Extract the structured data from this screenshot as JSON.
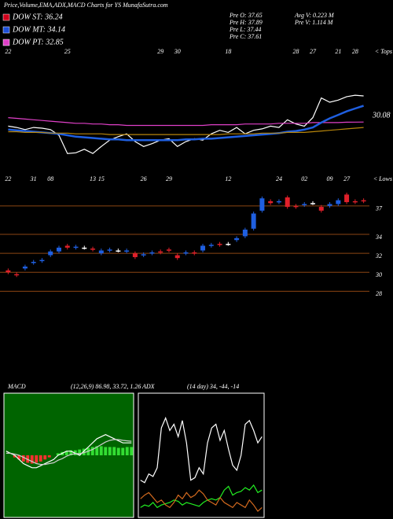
{
  "header": {
    "title": "Price,Volume,EMA,ADX,MACD Charts for YS MunafaSutra.com",
    "dow": [
      "DOW ST: 36.24",
      "DOW MT: 34.14",
      "DOW PT: 32.85"
    ],
    "dow_colors": [
      "#d0001a",
      "#1d4fd8",
      "#e040c8"
    ],
    "stats_left": [
      "Pre  O: 37.65",
      "Pre  H: 37.89",
      "Pre  L: 37.44",
      "Pre  C: 37.61"
    ],
    "stats_right": [
      "Avg V: 0.223 M",
      "Pre  V: 1.114  M"
    ]
  },
  "chart_data": [
    {
      "type": "line",
      "corner_label": "< Tops",
      "categories": [
        "22",
        null,
        null,
        null,
        null,
        null,
        null,
        "25",
        null,
        null,
        null,
        null,
        null,
        null,
        null,
        null,
        null,
        null,
        "29",
        null,
        "30",
        null,
        null,
        null,
        null,
        null,
        "18",
        null,
        null,
        null,
        null,
        null,
        null,
        null,
        "28",
        null,
        "27",
        null,
        null,
        "21",
        null,
        "28",
        null
      ],
      "ylim": [
        24.5,
        38.5
      ],
      "series": [
        {
          "color": "#ffffff",
          "values": [
            29.5,
            29.3,
            29.0,
            29.3,
            29.2,
            29.0,
            28.2,
            25.6,
            25.7,
            26.2,
            25.6,
            26.6,
            27.5,
            28.0,
            28.4,
            27.3,
            26.6,
            27.0,
            27.5,
            27.7,
            26.6,
            27.3,
            27.7,
            27.5,
            28.4,
            28.9,
            28.6,
            29.3,
            28.4,
            28.9,
            29.1,
            29.5,
            29.3,
            30.4,
            29.8,
            29.5,
            30.7,
            33.5,
            32.9,
            33.2,
            33.7,
            33.9,
            33.8
          ]
        },
        {
          "color": "#e040c8",
          "values": [
            30.7,
            30.6,
            30.5,
            30.4,
            30.3,
            30.2,
            30.1,
            30.0,
            29.9,
            29.9,
            29.8,
            29.8,
            29.7,
            29.7,
            29.6,
            29.6,
            29.6,
            29.6,
            29.6,
            29.6,
            29.6,
            29.6,
            29.6,
            29.6,
            29.7,
            29.7,
            29.7,
            29.7,
            29.8,
            29.8,
            29.8,
            29.8,
            29.9,
            29.9,
            29.9,
            29.9,
            30.0,
            30.0,
            30.0,
            30.0,
            30.05,
            30.07,
            30.08
          ]
        },
        {
          "color": "#1f5fe0",
          "values": [
            29.0,
            28.9,
            28.8,
            28.7,
            28.6,
            28.5,
            28.4,
            28.2,
            28.0,
            27.9,
            27.8,
            27.7,
            27.6,
            27.6,
            27.5,
            27.5,
            27.5,
            27.5,
            27.5,
            27.5,
            27.5,
            27.6,
            27.6,
            27.7,
            27.7,
            27.8,
            27.9,
            28.0,
            28.1,
            28.2,
            28.3,
            28.4,
            28.5,
            28.7,
            28.8,
            29.0,
            29.3,
            30.0,
            30.6,
            31.1,
            31.6,
            32.0,
            32.4
          ]
        },
        {
          "color": "#b8860b",
          "values": [
            28.7,
            28.7,
            28.6,
            28.6,
            28.6,
            28.5,
            28.5,
            28.5,
            28.4,
            28.4,
            28.4,
            28.4,
            28.3,
            28.3,
            28.3,
            28.3,
            28.3,
            28.3,
            28.3,
            28.3,
            28.3,
            28.3,
            28.3,
            28.3,
            28.3,
            28.3,
            28.4,
            28.4,
            28.4,
            28.4,
            28.5,
            28.5,
            28.5,
            28.6,
            28.6,
            28.6,
            28.7,
            28.8,
            28.9,
            29.0,
            29.1,
            29.2,
            29.3
          ]
        }
      ]
    },
    {
      "type": "candlestick",
      "corner_label": "< Lows",
      "categories": [
        "22",
        null,
        null,
        "31",
        null,
        "08",
        null,
        null,
        null,
        null,
        "13",
        "15",
        null,
        null,
        null,
        null,
        "26",
        null,
        null,
        "29",
        null,
        null,
        null,
        null,
        null,
        null,
        "12",
        null,
        null,
        null,
        null,
        null,
        "24",
        null,
        null,
        "02",
        null,
        null,
        "09",
        null,
        "27",
        null,
        null
      ],
      "open": [
        30.2,
        29.8,
        30.4,
        31.0,
        31.2,
        31.8,
        32.2,
        32.8,
        32.6,
        32.6,
        32.5,
        32.0,
        32.3,
        32.3,
        32.2,
        32.0,
        31.8,
        32.0,
        32.2,
        32.4,
        31.8,
        32.0,
        32.1,
        32.3,
        32.8,
        33.0,
        33.0,
        33.4,
        33.8,
        34.6,
        36.5,
        37.5,
        37.4,
        37.9,
        37.0,
        37.1,
        37.3,
        36.9,
        37.0,
        37.2,
        38.2,
        37.5,
        37.6
      ],
      "high": [
        30.4,
        30.0,
        30.8,
        31.3,
        31.5,
        32.4,
        32.8,
        33.0,
        32.9,
        32.8,
        32.7,
        32.5,
        32.6,
        32.5,
        32.5,
        32.2,
        32.1,
        32.3,
        32.4,
        32.6,
        32.0,
        32.3,
        32.3,
        33.0,
        33.1,
        33.2,
        33.2,
        33.8,
        34.7,
        36.4,
        38.0,
        37.7,
        37.7,
        38.1,
        37.2,
        37.4,
        37.5,
        37.1,
        37.4,
        37.8,
        38.4,
        37.7,
        37.8
      ],
      "low": [
        29.8,
        29.5,
        30.2,
        30.8,
        31.0,
        31.6,
        32.0,
        32.4,
        32.4,
        32.4,
        32.2,
        31.8,
        32.1,
        32.1,
        32.0,
        31.4,
        31.6,
        31.8,
        31.9,
        32.1,
        31.3,
        31.8,
        31.8,
        32.1,
        32.6,
        32.7,
        32.8,
        33.2,
        33.6,
        34.4,
        36.3,
        37.1,
        37.2,
        36.7,
        36.7,
        36.9,
        37.1,
        36.3,
        36.8,
        37.0,
        37.2,
        37.2,
        37.3
      ],
      "close": [
        30.0,
        29.7,
        30.6,
        31.1,
        31.3,
        32.2,
        32.6,
        32.6,
        32.7,
        32.6,
        32.4,
        32.3,
        32.4,
        32.3,
        32.3,
        31.6,
        31.9,
        32.1,
        32.1,
        32.3,
        31.5,
        32.1,
        32.0,
        32.8,
        32.9,
        32.9,
        33.0,
        33.6,
        34.5,
        36.2,
        37.8,
        37.3,
        37.5,
        36.9,
        36.9,
        37.2,
        37.3,
        36.5,
        37.2,
        37.6,
        37.4,
        37.4,
        37.5
      ],
      "up_color": "#1f5fe0",
      "down_color": "#e0202a",
      "flat_color": "#ffffff",
      "grid_color": "#8b4513",
      "ylim": [
        27.2,
        38.4
      ],
      "yticks": [
        28,
        30,
        32,
        34,
        37
      ],
      "grid": true
    },
    {
      "type": "macd",
      "title": "MACD",
      "subtitle": "(12,26,9) 86.98, 33.72, 1.26",
      "background": "#006400",
      "ylim": [
        -1.5,
        1.5
      ],
      "histogram": [
        0,
        0,
        -0.05,
        -0.1,
        -0.15,
        -0.18,
        -0.2,
        -0.18,
        -0.15,
        -0.1,
        -0.05,
        0,
        0.05,
        0.08,
        0.1,
        0.12,
        0.12,
        0.14,
        0.16,
        0.18,
        0.2,
        0.22,
        0.22,
        0.2,
        0.2,
        0.2,
        0.18,
        0.18,
        0.2,
        0.2
      ],
      "up_color": "#33dd33",
      "down_color": "#ff3030",
      "series": [
        {
          "color": "#ffffff",
          "values": [
            0.1,
            0.05,
            0,
            -0.1,
            -0.2,
            -0.25,
            -0.3,
            -0.3,
            -0.25,
            -0.2,
            -0.15,
            -0.1,
            0,
            0.05,
            0.1,
            0.1,
            0.05,
            0,
            0.1,
            0.2,
            0.3,
            0.4,
            0.45,
            0.5,
            0.45,
            0.4,
            0.35,
            0.3,
            0.3,
            0.3
          ]
        },
        {
          "color": "#cccccc",
          "values": [
            0.05,
            0.05,
            0.03,
            0,
            -0.05,
            -0.1,
            -0.15,
            -0.2,
            -0.22,
            -0.22,
            -0.2,
            -0.18,
            -0.12,
            -0.08,
            -0.02,
            0.02,
            0.04,
            0.04,
            0.06,
            0.1,
            0.14,
            0.2,
            0.26,
            0.32,
            0.36,
            0.38,
            0.38,
            0.36,
            0.35,
            0.34
          ]
        }
      ]
    },
    {
      "type": "line",
      "title": "ADX",
      "subtitle": "(14 day) 34, -44, -14",
      "background": "#000000",
      "ylim": [
        0,
        100
      ],
      "series": [
        {
          "color": "#ffffff",
          "values": [
            30,
            28,
            35,
            33,
            40,
            72,
            80,
            70,
            75,
            65,
            78,
            60,
            30,
            32,
            40,
            35,
            60,
            72,
            75,
            62,
            70,
            55,
            42,
            38,
            50,
            75,
            78,
            70,
            60,
            65
          ]
        },
        {
          "color": "#22ee22",
          "values": [
            8,
            10,
            9,
            12,
            8,
            10,
            11,
            12,
            14,
            13,
            10,
            12,
            11,
            10,
            9,
            12,
            14,
            15,
            14,
            16,
            22,
            25,
            18,
            20,
            21,
            24,
            22,
            26,
            20,
            22
          ]
        },
        {
          "color": "#d2691e",
          "values": [
            15,
            18,
            20,
            16,
            12,
            14,
            10,
            8,
            12,
            18,
            15,
            20,
            16,
            18,
            22,
            19,
            14,
            12,
            10,
            16,
            12,
            10,
            8,
            12,
            10,
            8,
            14,
            10,
            5,
            8
          ]
        }
      ]
    }
  ]
}
